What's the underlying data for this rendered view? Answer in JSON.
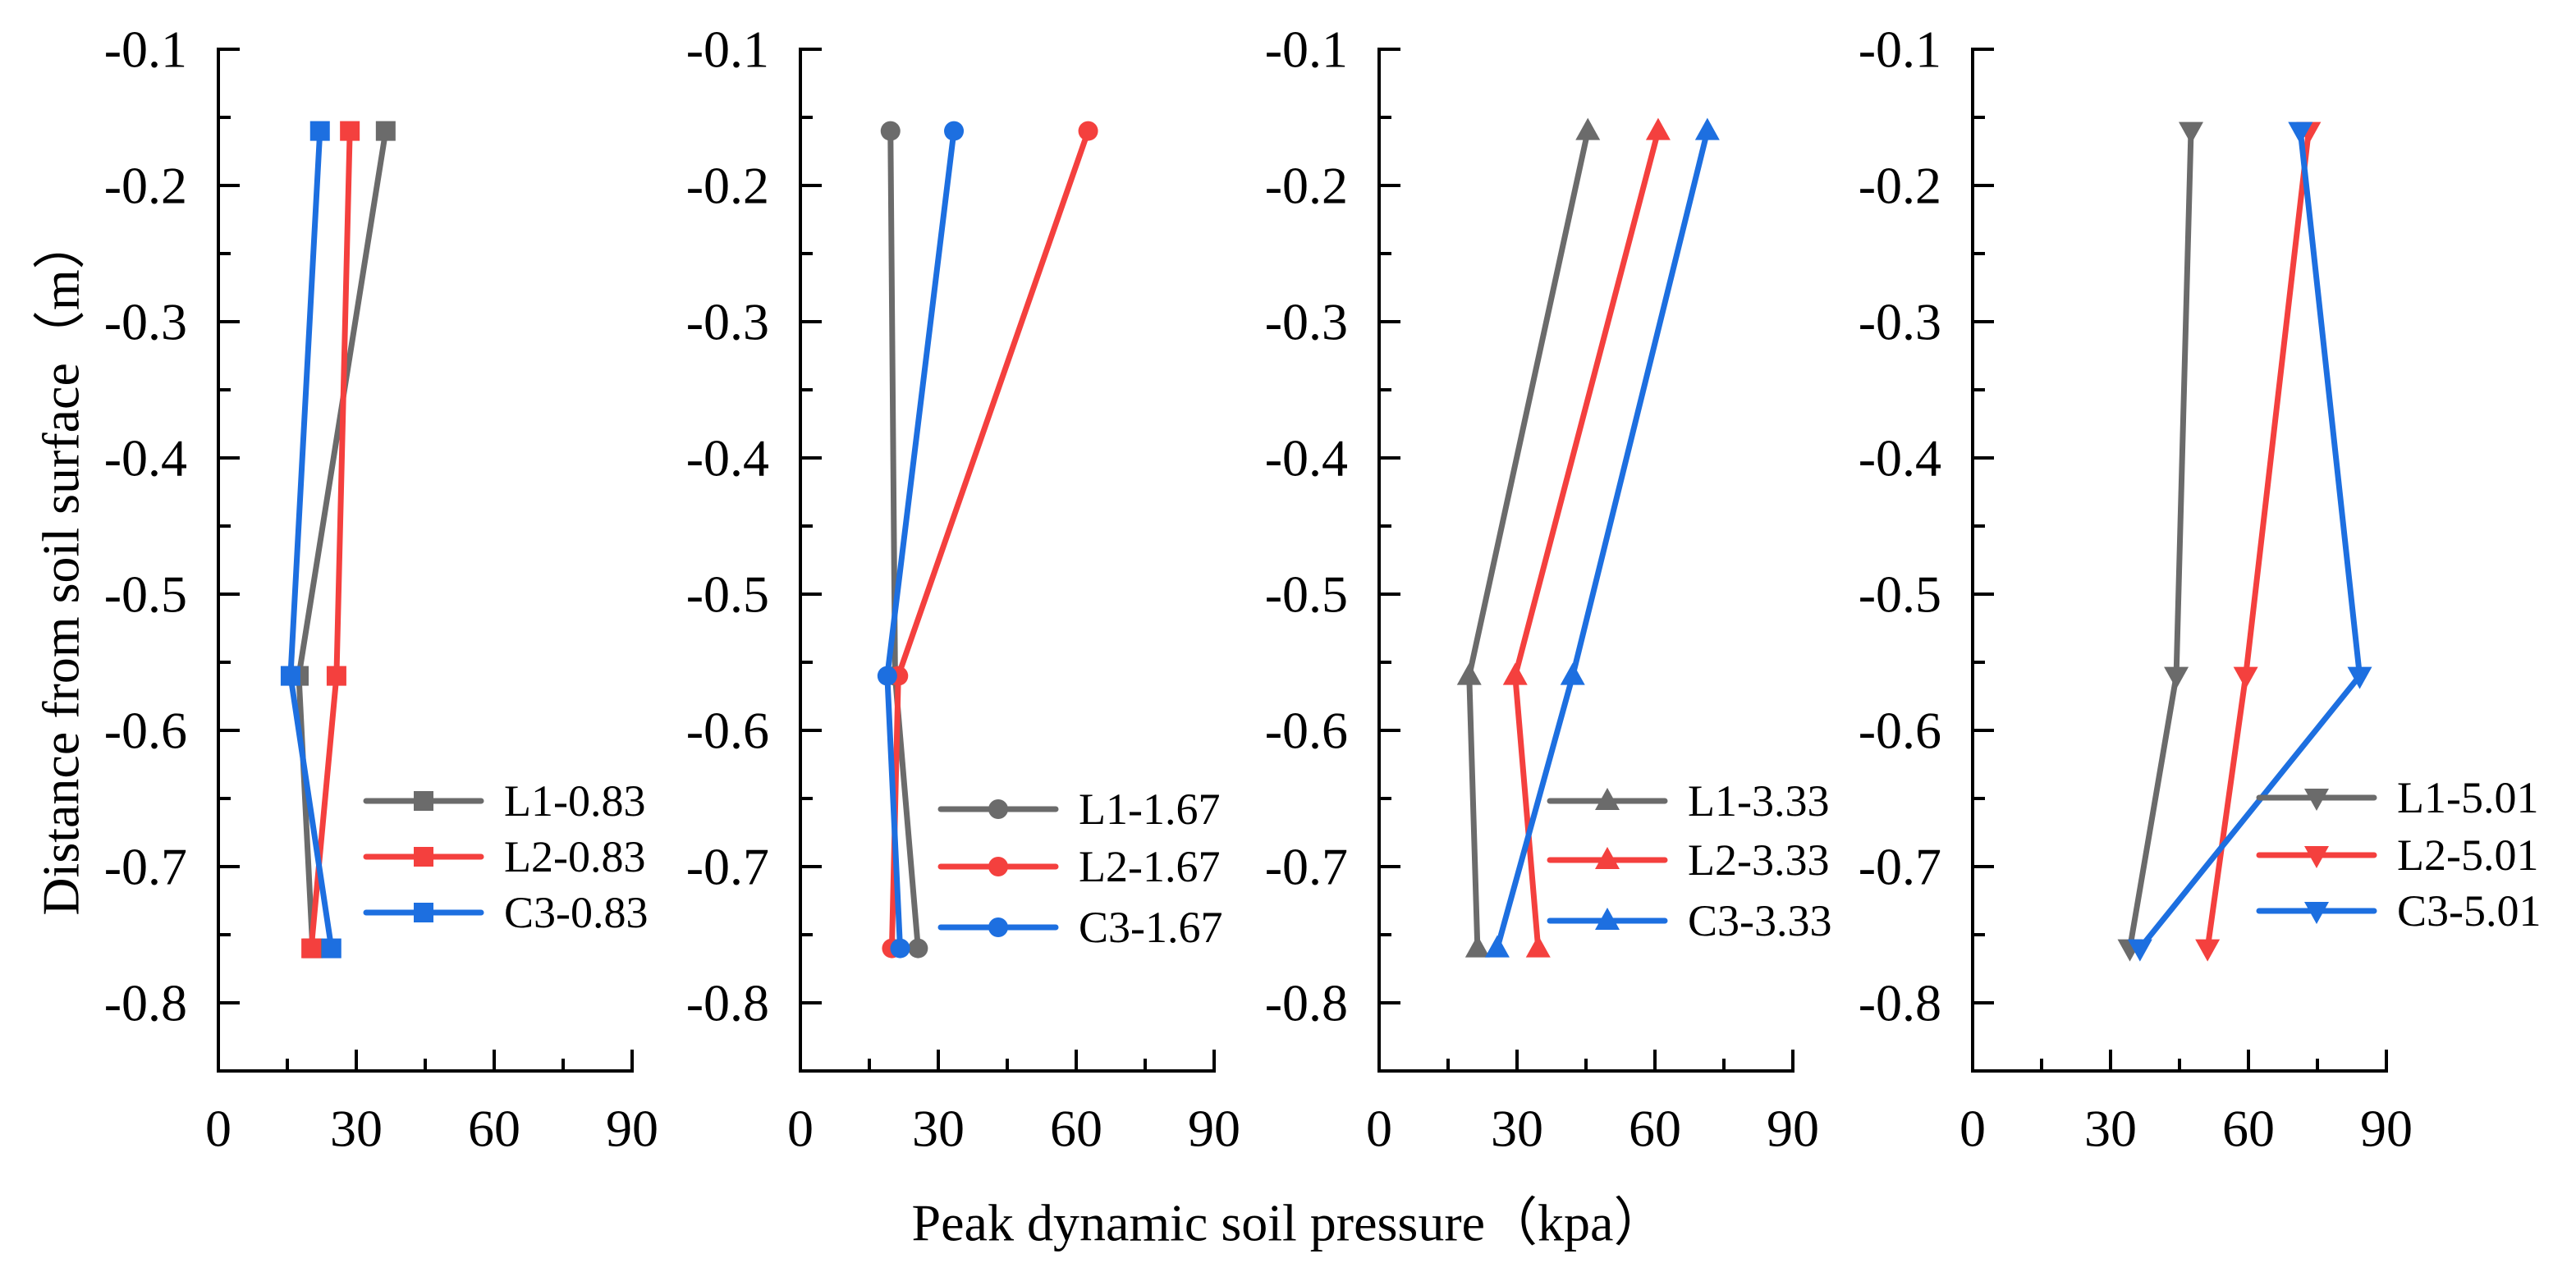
{
  "figure": {
    "xlabel": "Peak dynamic soil pressure（kpa）",
    "ylabel": "Distance from soil surface（m）"
  },
  "chart_data": [
    {
      "type": "line",
      "marker": "square",
      "xlim": [
        0,
        90
      ],
      "ylim": [
        -0.85,
        -0.1
      ],
      "xticks": [
        0,
        30,
        60,
        90
      ],
      "yticks": [
        -0.1,
        -0.2,
        -0.3,
        -0.4,
        -0.5,
        -0.6,
        -0.7,
        -0.8
      ],
      "grid": false,
      "legend": "bottom-right",
      "series": [
        {
          "name": "L1-0.83",
          "color": "#6b6b6b",
          "x": [
            36.4,
            17.5,
            20.5
          ],
          "y": [
            -0.16,
            -0.56,
            -0.76
          ]
        },
        {
          "name": "L2-0.83",
          "color": "#f4403e",
          "x": [
            28.6,
            25.7,
            20.2
          ],
          "y": [
            -0.16,
            -0.56,
            -0.76
          ]
        },
        {
          "name": "C3-0.83",
          "color": "#1d6fe0",
          "x": [
            22.1,
            15.7,
            24.6
          ],
          "y": [
            -0.16,
            -0.56,
            -0.76
          ]
        }
      ]
    },
    {
      "type": "line",
      "marker": "circle",
      "xlim": [
        0,
        90
      ],
      "ylim": [
        -0.85,
        -0.1
      ],
      "xticks": [
        0,
        30,
        60,
        90
      ],
      "yticks": [
        -0.1,
        -0.2,
        -0.3,
        -0.4,
        -0.5,
        -0.6,
        -0.7,
        -0.8
      ],
      "grid": false,
      "legend": "bottom-right",
      "series": [
        {
          "name": "L1-1.67",
          "color": "#6b6b6b",
          "x": [
            19.6,
            20.6,
            25.6
          ],
          "y": [
            -0.16,
            -0.56,
            -0.76
          ]
        },
        {
          "name": "L2-1.67",
          "color": "#f4403e",
          "x": [
            62.6,
            21.3,
            19.9
          ],
          "y": [
            -0.16,
            -0.56,
            -0.76
          ]
        },
        {
          "name": "C3-1.67",
          "color": "#1d6fe0",
          "x": [
            33.4,
            18.9,
            21.7
          ],
          "y": [
            -0.16,
            -0.56,
            -0.76
          ]
        }
      ]
    },
    {
      "type": "line",
      "marker": "triangle-up",
      "xlim": [
        0,
        90
      ],
      "ylim": [
        -0.85,
        -0.1
      ],
      "xticks": [
        0,
        30,
        60,
        90
      ],
      "yticks": [
        -0.1,
        -0.2,
        -0.3,
        -0.4,
        -0.5,
        -0.6,
        -0.7,
        -0.8
      ],
      "grid": false,
      "legend": "bottom-right",
      "series": [
        {
          "name": "L1-3.33",
          "color": "#6b6b6b",
          "x": [
            45.4,
            19.6,
            21.4
          ],
          "y": [
            -0.16,
            -0.56,
            -0.76
          ]
        },
        {
          "name": "L2-3.33",
          "color": "#f4403e",
          "x": [
            60.7,
            29.6,
            34.6
          ],
          "y": [
            -0.16,
            -0.56,
            -0.76
          ]
        },
        {
          "name": "C3-3.33",
          "color": "#1d6fe0",
          "x": [
            71.4,
            42.1,
            25.7
          ],
          "y": [
            -0.16,
            -0.56,
            -0.76
          ]
        }
      ]
    },
    {
      "type": "line",
      "marker": "triangle-down",
      "xlim": [
        0,
        90
      ],
      "ylim": [
        -0.85,
        -0.1
      ],
      "xticks": [
        0,
        30,
        60,
        90
      ],
      "yticks": [
        -0.1,
        -0.2,
        -0.3,
        -0.4,
        -0.5,
        -0.6,
        -0.7,
        -0.8
      ],
      "grid": false,
      "legend": "bottom-right",
      "series": [
        {
          "name": "L1-5.01",
          "color": "#6b6b6b",
          "x": [
            47.5,
            44.3,
            34.2
          ],
          "y": [
            -0.16,
            -0.56,
            -0.76
          ]
        },
        {
          "name": "L2-5.01",
          "color": "#f4403e",
          "x": [
            73.1,
            59.4,
            51.1
          ],
          "y": [
            -0.16,
            -0.56,
            -0.76
          ]
        },
        {
          "name": "C3-5.01",
          "color": "#1d6fe0",
          "x": [
            71.3,
            84.2,
            36.4
          ],
          "y": [
            -0.16,
            -0.56,
            -0.76
          ]
        }
      ]
    }
  ]
}
